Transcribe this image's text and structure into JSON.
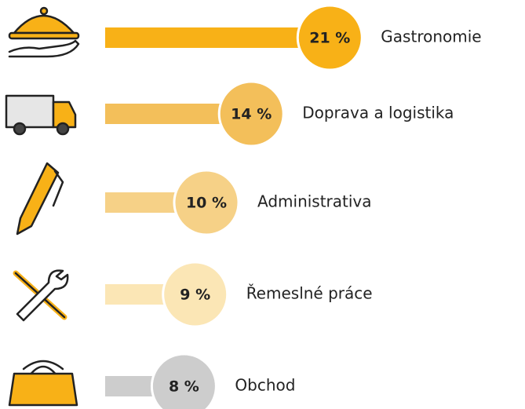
{
  "chart_data": {
    "type": "bar",
    "orientation": "horizontal",
    "categories": [
      "Gastronomie",
      "Doprava a logistika",
      "Administrativa",
      "Řemeslné práce",
      "Obchod"
    ],
    "values": [
      21,
      14,
      10,
      9,
      8
    ],
    "value_labels": [
      "21 %",
      "14 %",
      "10 %",
      "9 %",
      "8 %"
    ],
    "colors": [
      "#f8b117",
      "#f3bf5a",
      "#f6d187",
      "#fbe6b5",
      "#cdcdcd"
    ]
  }
}
